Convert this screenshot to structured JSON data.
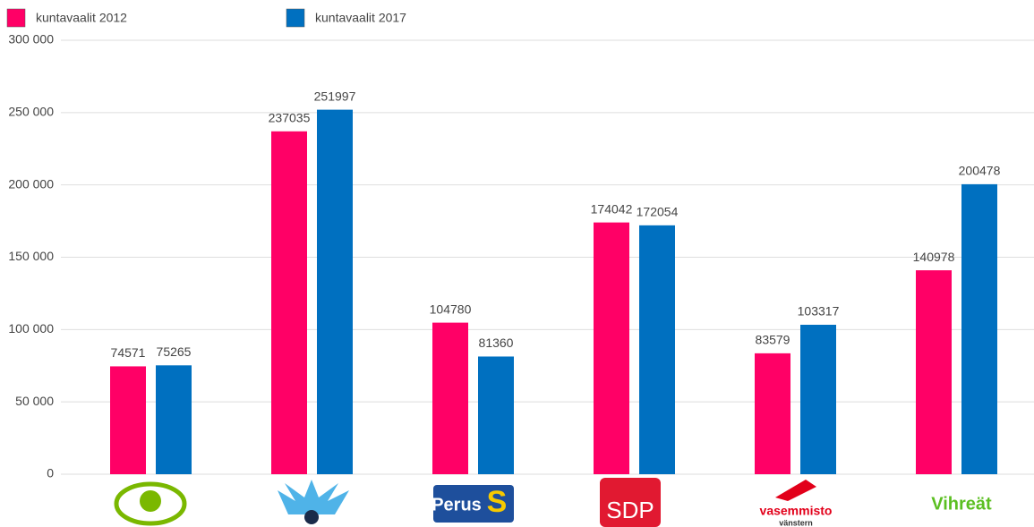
{
  "chart_data": {
    "type": "bar",
    "categories": [
      null,
      null,
      "Perus",
      "SDP",
      "vasemmisto",
      "Vihreät"
    ],
    "category_sublabels": [
      null,
      null,
      "S",
      null,
      "vänstern",
      null
    ],
    "series": [
      {
        "name": "kuntavaalit 2012",
        "color": "#ff0066",
        "values": [
          74571,
          237035,
          104780,
          174042,
          83579,
          140978
        ]
      },
      {
        "name": "kuntavaalit 2017",
        "color": "#0070c0",
        "values": [
          75265,
          251997,
          81360,
          172054,
          103317,
          200478
        ]
      }
    ],
    "ylim": [
      0,
      300000
    ],
    "yticks": [
      0,
      {
        "value": 50000,
        "label": "50 000"
      },
      {
        "value": 100000,
        "label": "100 000"
      },
      {
        "value": 150000,
        "label": "150 000"
      },
      {
        "value": 200000,
        "label": "200 000"
      },
      {
        "value": 250000,
        "label": "250 000"
      },
      {
        "value": 300000,
        "label": "300 000"
      }
    ],
    "grid": true
  }
}
